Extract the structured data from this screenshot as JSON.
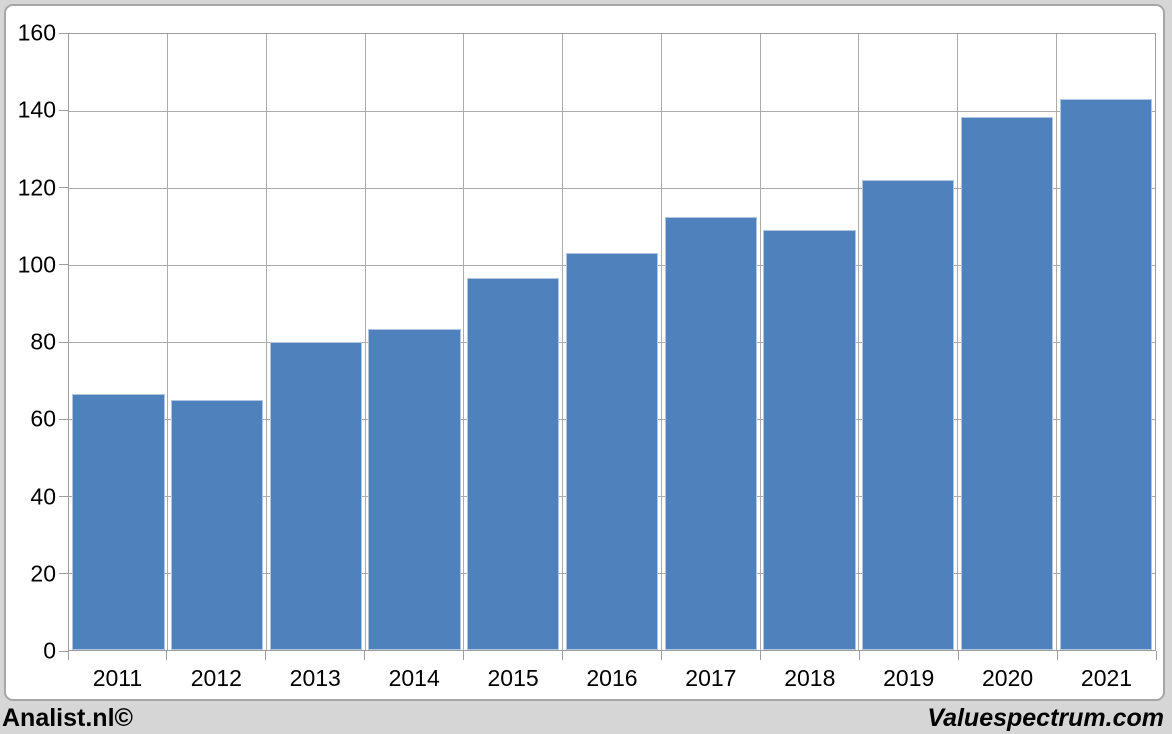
{
  "chart_data": {
    "type": "bar",
    "title": "",
    "categories": [
      "2011",
      "2012",
      "2013",
      "2014",
      "2015",
      "2016",
      "2017",
      "2018",
      "2019",
      "2020",
      "2021"
    ],
    "values": [
      66.5,
      65,
      80,
      83.5,
      96.5,
      103,
      112.5,
      109,
      122,
      138.5,
      143
    ],
    "xlabel": "",
    "ylabel": "",
    "ylim": [
      0,
      160
    ],
    "yticks": [
      0,
      20,
      40,
      60,
      80,
      100,
      120,
      140,
      160
    ],
    "grid": "horizontal-and-vertical",
    "legend": "none",
    "bar_color": "#4f81bd"
  },
  "footer": {
    "left": "Analist.nl©",
    "right": "Valuespectrum.com"
  },
  "colors": {
    "page_background": "#d6d6d6",
    "panel_background": "#ffffff",
    "panel_border": "#a6a6a6",
    "gridline": "#ababab",
    "axis": "#9d9d9d",
    "bar": "#4f81bd",
    "text": "#000000"
  }
}
